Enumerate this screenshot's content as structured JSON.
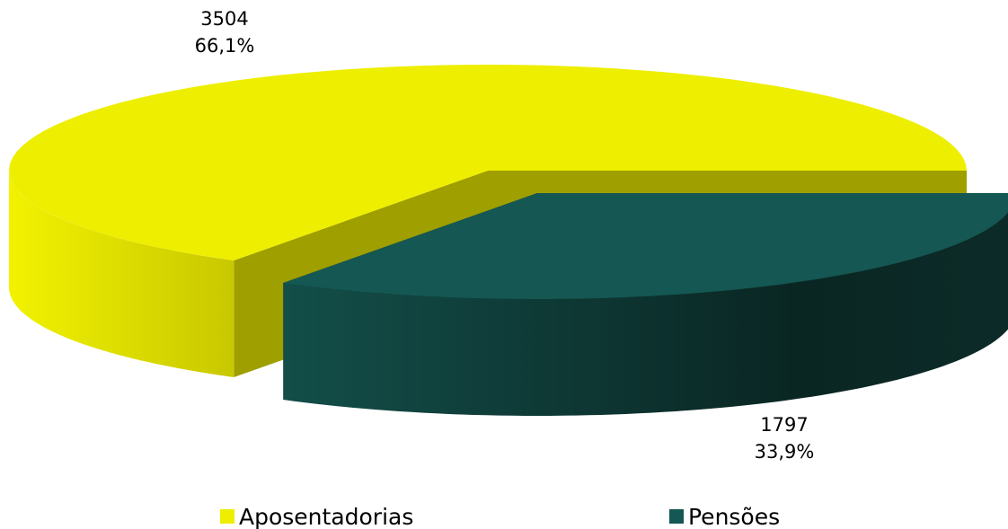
{
  "chart_data": {
    "type": "pie3d",
    "categories": [
      "Aposentadorias",
      "Pensões"
    ],
    "values": [
      3504,
      1797
    ],
    "percentages": [
      66.1,
      33.9
    ],
    "percentage_labels": [
      "66,1%",
      "33,9%"
    ],
    "colors": [
      "#eeee00",
      "#155752"
    ],
    "legend": "bottom"
  }
}
